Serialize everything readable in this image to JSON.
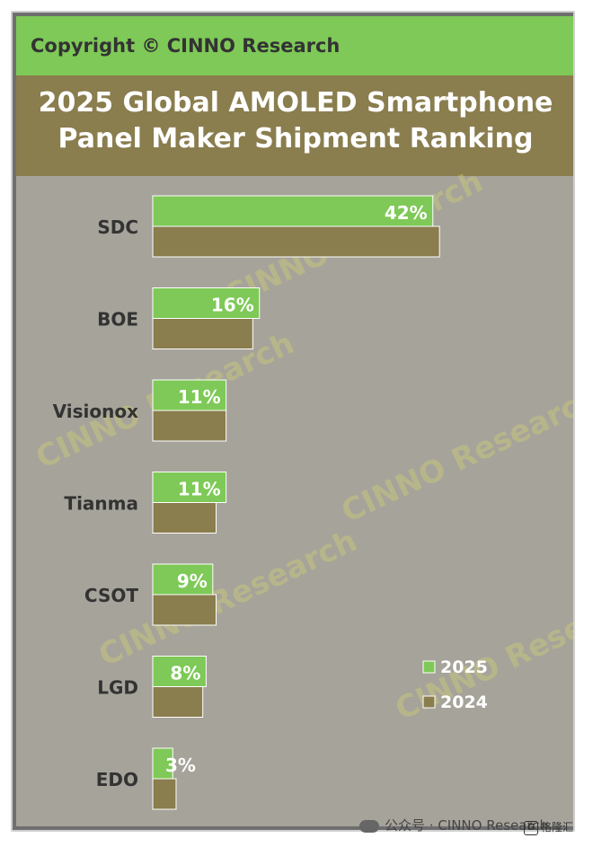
{
  "copyright": "Copyright © CINNO Research",
  "title_lines": [
    "2025 Global AMOLED Smartphone",
    "Panel Maker Shipment Ranking"
  ],
  "watermark": "CINNO Research",
  "footer": {
    "wechat": "公众号 · CINNO Research",
    "logo": "格隆汇"
  },
  "colors": {
    "2025": "#7ec957",
    "2024": "#8a7d4e",
    "background": "#a6a39a",
    "copyright_bar": "#7ec957",
    "title_bar": "#8a7d4e"
  },
  "chart_data": {
    "type": "bar",
    "orientation": "horizontal",
    "categories": [
      "SDC",
      "BOE",
      "Visionox",
      "Tianma",
      "CSOT",
      "LGD",
      "EDO"
    ],
    "series": [
      {
        "name": "2025",
        "values": [
          42,
          16,
          11,
          11,
          9,
          8,
          3
        ],
        "labels": [
          "42%",
          "16%",
          "11%",
          "11%",
          "9%",
          "8%",
          "3%"
        ]
      },
      {
        "name": "2024",
        "values": [
          43,
          15,
          11,
          9.5,
          9.5,
          7.5,
          3.5
        ]
      }
    ],
    "xlim": [
      0,
      45
    ],
    "legend_position": "bottom-right",
    "grid": false
  }
}
